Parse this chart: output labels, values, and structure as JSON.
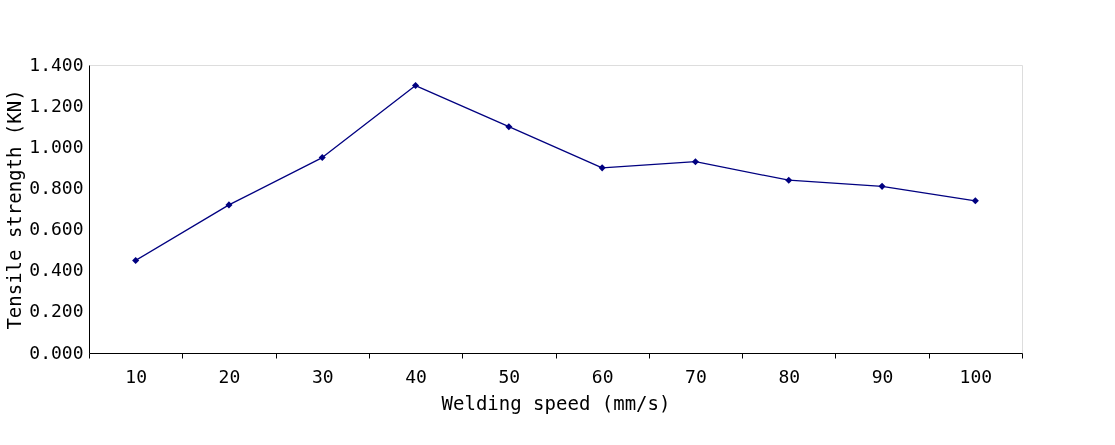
{
  "chart_data": {
    "type": "line",
    "xlabel": "Welding speed (mm/s)",
    "ylabel": "Tensile strength (KN)",
    "categories": [
      "10",
      "20",
      "30",
      "40",
      "50",
      "60",
      "70",
      "80",
      "90",
      "100"
    ],
    "series": [
      {
        "color": "#000080",
        "values": [
          0.45,
          0.72,
          0.95,
          1.3,
          1.1,
          0.9,
          0.93,
          0.84,
          0.81,
          0.74
        ]
      }
    ],
    "ylim": [
      0,
      1.4
    ],
    "yticks": [
      {
        "value": 0,
        "label": "0.000"
      },
      {
        "value": 0.2,
        "label": "0.200"
      },
      {
        "value": 0.4,
        "label": "0.400"
      },
      {
        "value": 0.6,
        "label": "0.600"
      },
      {
        "value": 0.8,
        "label": "0.800"
      },
      {
        "value": 1.0,
        "label": "1.000"
      },
      {
        "value": 1.2,
        "label": "1.200"
      },
      {
        "value": 1.4,
        "label": "1.400"
      }
    ],
    "grid": false,
    "legend": false,
    "marker": "diamond",
    "line_style": "solid"
  }
}
